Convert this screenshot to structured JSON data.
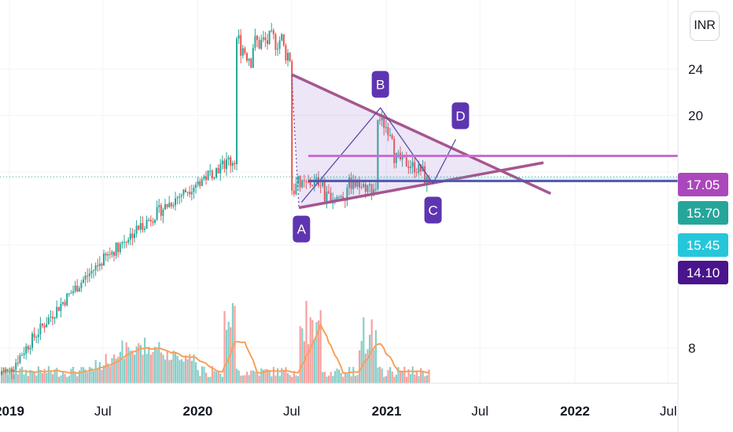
{
  "currency": "INR",
  "chart_data": {
    "type": "candlestick",
    "x_tick_labels": [
      {
        "label": "2019",
        "date": "2019-01",
        "bold": true
      },
      {
        "label": "Jul",
        "date": "2019-07",
        "bold": false
      },
      {
        "label": "2020",
        "date": "2020-01",
        "bold": true
      },
      {
        "label": "Jul",
        "date": "2020-07",
        "bold": false
      },
      {
        "label": "2021",
        "date": "2021-01",
        "bold": true
      },
      {
        "label": "Jul",
        "date": "2021-07",
        "bold": false
      },
      {
        "label": "2022",
        "date": "2022-01",
        "bold": true
      },
      {
        "label": "Jul",
        "date": "2022-07",
        "bold": false
      }
    ],
    "y_ticks": [
      8,
      20,
      24
    ],
    "y_scale": "log",
    "price_tags": [
      {
        "value": "17.05",
        "color": "#ab47bc"
      },
      {
        "value": "15.70",
        "color": "#26a69a"
      },
      {
        "value": "15.45",
        "color": "#26c6da"
      },
      {
        "value": "14.10",
        "color": "#4a148c"
      }
    ],
    "pattern_points": [
      {
        "label": "A",
        "date": "2020-07-20",
        "price": 14.2
      },
      {
        "label": "B",
        "date": "2020-12-20",
        "price": 20.6
      },
      {
        "label": "C",
        "date": "2021-04-01",
        "price": 15.3
      },
      {
        "label": "D",
        "date": "2021-05-15",
        "price": 18.2
      }
    ],
    "triangle_lines": {
      "upper": [
        {
          "date": "2020-07-01",
          "price": 23.5
        },
        {
          "date": "2021-11-15",
          "price": 14.7
        }
      ],
      "lower": [
        {
          "date": "2020-07-15",
          "price": 13.9
        },
        {
          "date": "2021-11-01",
          "price": 16.6
        }
      ]
    },
    "horizontal_lines": [
      17.05,
      15.45
    ],
    "current_price_line": 15.7,
    "candles_close": [
      {
        "date": "2019-01-01",
        "o": 7.2,
        "c": 7.3
      },
      {
        "date": "2020-03-15",
        "o": 17.0,
        "c": 27.0
      },
      {
        "date": "2020-04-15",
        "o": 25.0,
        "c": 26.5
      },
      {
        "date": "2020-06-15",
        "o": 27.0,
        "c": 26.0
      },
      {
        "date": "2020-07-01",
        "o": 25.0,
        "c": 15.0
      },
      {
        "date": "2020-09-01",
        "o": 15.5,
        "c": 14.5
      },
      {
        "date": "2020-10-15",
        "o": 14.5,
        "c": 15.3
      },
      {
        "date": "2020-12-15",
        "o": 15.0,
        "c": 19.8
      },
      {
        "date": "2021-01-15",
        "o": 18.5,
        "c": 17.0
      },
      {
        "date": "2021-03-15",
        "o": 16.0,
        "c": 15.5
      },
      {
        "date": "2021-04-01",
        "o": 15.4,
        "c": 16.0
      }
    ],
    "volume_ma_color": "#f7a15a"
  }
}
